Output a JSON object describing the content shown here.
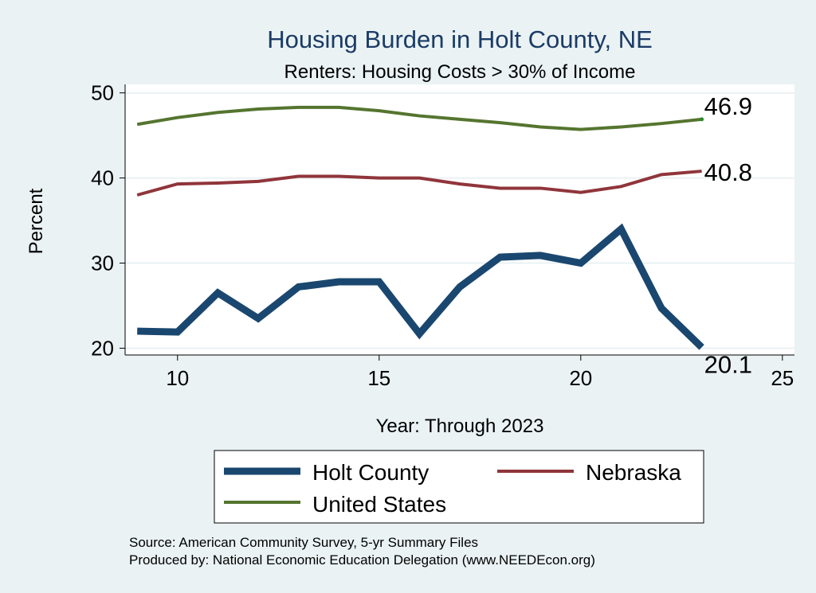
{
  "chart_data": {
    "type": "line",
    "title": "Housing Burden in Holt County, NE",
    "subtitle": "Renters: Housing Costs > 30% of Income",
    "xlabel": "Year: Through 2023",
    "ylabel": "Percent",
    "xlim": [
      8.7,
      25.3
    ],
    "ylim": [
      19.2,
      51
    ],
    "xticks": [
      10,
      15,
      20,
      25
    ],
    "yticks": [
      20,
      30,
      40,
      50
    ],
    "grid": true,
    "legend_position": "bottom",
    "x": [
      9,
      10,
      11,
      12,
      13,
      14,
      15,
      16,
      17,
      18,
      19,
      20,
      21,
      22,
      23
    ],
    "series": [
      {
        "name": "Holt County",
        "color": "#1a476f",
        "values": [
          22.0,
          21.9,
          26.5,
          23.5,
          27.2,
          27.8,
          27.8,
          21.7,
          27.2,
          30.7,
          30.9,
          30.0,
          34.0,
          24.7,
          20.1
        ],
        "end_label": "20.1"
      },
      {
        "name": "Nebraska",
        "color": "#90353b",
        "values": [
          38.0,
          39.3,
          39.4,
          39.6,
          40.2,
          40.2,
          40.0,
          40.0,
          39.3,
          38.8,
          38.8,
          38.3,
          39.0,
          40.4,
          40.8
        ],
        "end_label": "40.8"
      },
      {
        "name": "United States",
        "color": "#55752f",
        "values": [
          46.3,
          47.1,
          47.7,
          48.1,
          48.3,
          48.3,
          47.9,
          47.3,
          46.9,
          46.5,
          46.0,
          45.7,
          46.0,
          46.4,
          46.9
        ],
        "end_label": "46.9"
      }
    ],
    "notes": [
      "Source: American Community Survey, 5-yr Summary Files",
      "Produced by: National Economic Education Delegation (www.NEEDEcon.org)"
    ]
  }
}
